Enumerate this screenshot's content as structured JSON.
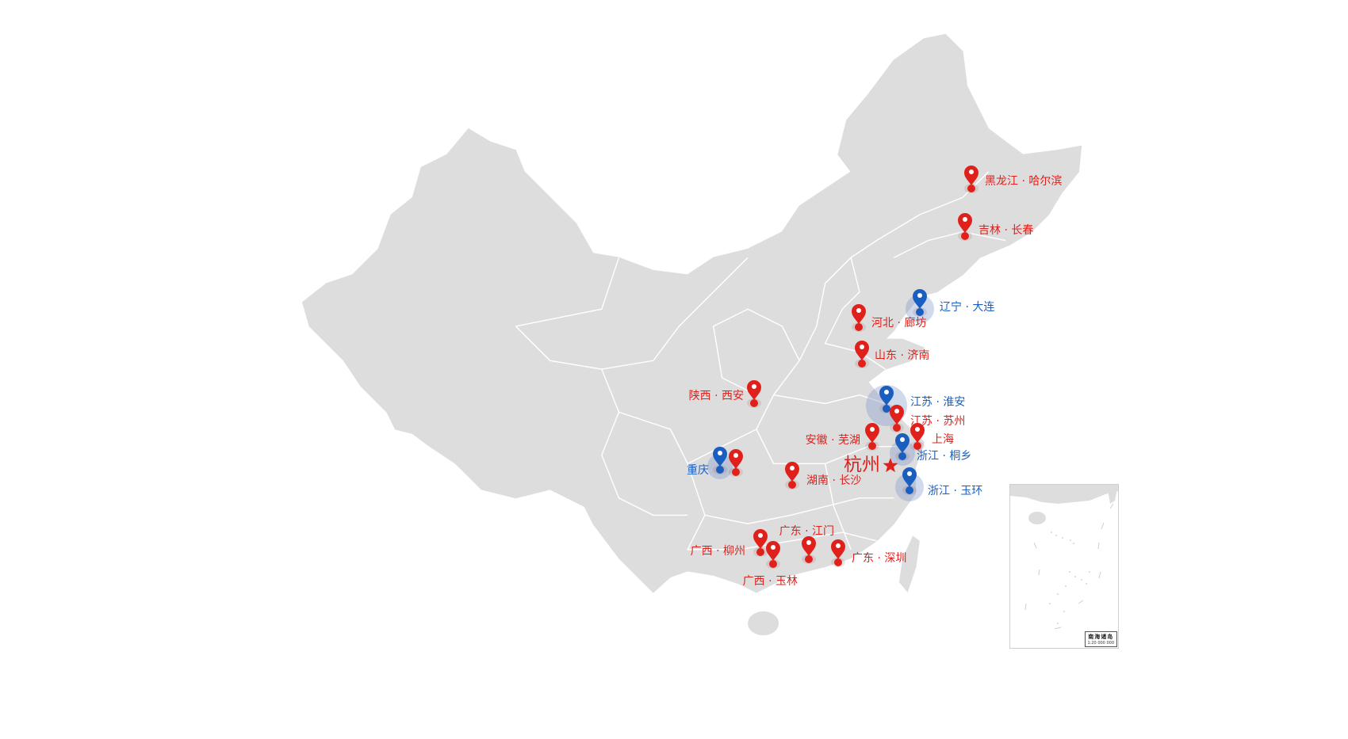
{
  "colors": {
    "land": "#dddddd",
    "border": "#ffffff",
    "red": "#e0201b",
    "blue": "#1a5fc0"
  },
  "markers": [
    {
      "label": "黑龙江 · 哈尔滨",
      "color": "red",
      "icon": "map-pin-icon"
    },
    {
      "label": "吉林 · 长春",
      "color": "red",
      "icon": "map-pin-icon"
    },
    {
      "label": "辽宁 · 大连",
      "color": "blue",
      "icon": "map-pin-icon"
    },
    {
      "label": "河北 · 廊坊",
      "color": "red",
      "icon": "map-pin-icon"
    },
    {
      "label": "山东 · 济南",
      "color": "red",
      "icon": "map-pin-icon"
    },
    {
      "label": "陕西 · 西安",
      "color": "red",
      "icon": "map-pin-icon"
    },
    {
      "label": "江苏 · 淮安",
      "color": "blue",
      "icon": "map-pin-icon"
    },
    {
      "label": "江苏 · 苏州",
      "color": "red",
      "icon": "map-pin-icon"
    },
    {
      "label": "上海",
      "color": "red",
      "icon": "map-pin-icon"
    },
    {
      "label": "安徽 · 芜湖",
      "color": "red",
      "icon": "map-pin-icon"
    },
    {
      "label": "浙江 · 桐乡",
      "color": "blue",
      "icon": "map-pin-icon"
    },
    {
      "label": "浙江 · 玉环",
      "color": "blue",
      "icon": "map-pin-icon"
    },
    {
      "label": "重庆",
      "color": "blue",
      "icon": "map-pin-icon"
    },
    {
      "label": "",
      "color": "red",
      "icon": "map-pin-icon"
    },
    {
      "label": "湖南 · 长沙",
      "color": "red",
      "icon": "map-pin-icon"
    },
    {
      "label": "广东 · 江门",
      "color": "red",
      "icon": "map-pin-icon"
    },
    {
      "label": "广东 · 深圳",
      "color": "red",
      "icon": "map-pin-icon"
    },
    {
      "label": "广西 · 柳州",
      "color": "red",
      "icon": "map-pin-icon"
    },
    {
      "label": "广西 · 玉林",
      "color": "red",
      "icon": "map-pin-icon"
    }
  ],
  "headquarters": {
    "label": "杭州",
    "icon": "star-icon",
    "color": "red"
  },
  "inset": {
    "title": "南海诸岛",
    "scale": "1:20 000 000"
  }
}
